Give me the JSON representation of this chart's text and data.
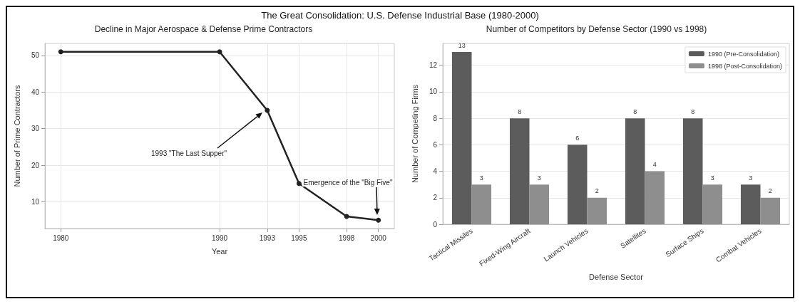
{
  "chart_data": [
    {
      "type": "line",
      "title": "Decline in Major Aerospace & Defense Prime Contractors",
      "xlabel": "Year",
      "ylabel": "Number of Prime Contractors",
      "annotations": [
        "The Great Consolidation: U.S. Defense Industrial Base (1980-2000)",
        "1993 \"The Last Supper\"",
        "Emergence of the \"Big Five\""
      ],
      "x": [
        1980,
        1990,
        1993,
        1995,
        1998,
        2000
      ],
      "series": [
        {
          "color": "#222222",
          "values": [
            51,
            51,
            35,
            15,
            6,
            5
          ]
        }
      ],
      "xlim": [
        1979,
        2001
      ],
      "xticks": [
        1980,
        1990,
        1993,
        1995,
        1998,
        2000
      ],
      "ylim": [
        2.7,
        53.3
      ],
      "yticks": [
        10,
        20,
        30,
        40,
        50
      ],
      "grid": true,
      "marker": "circle",
      "line_style": "solid",
      "legend": false
    },
    {
      "type": "bar",
      "title": "Number of Competitors by Defense Sector (1990 vs 1998)",
      "xlabel": "Defense Sector",
      "ylabel": "Number of Competing Firms",
      "categories": [
        "Tactical Missiles",
        "Fixed-Wing Aircraft",
        "Launch Vehicles",
        "Satellites",
        "Surface Ships",
        "Combat Vehicles"
      ],
      "series": [
        {
          "name": "1990 (Pre-Consolidation)",
          "color": "#5c5c5c",
          "values": [
            13,
            8,
            6,
            8,
            8,
            3
          ]
        },
        {
          "name": "1998 (Post-Consolidation)",
          "color": "#8e8e8e",
          "values": [
            3,
            3,
            2,
            4,
            3,
            2
          ]
        }
      ],
      "ylim": [
        0,
        13.65
      ],
      "yticks": [
        0,
        2,
        4,
        6,
        8,
        10,
        12
      ],
      "grid": "y",
      "legend": "top right",
      "data_labels": true
    }
  ]
}
